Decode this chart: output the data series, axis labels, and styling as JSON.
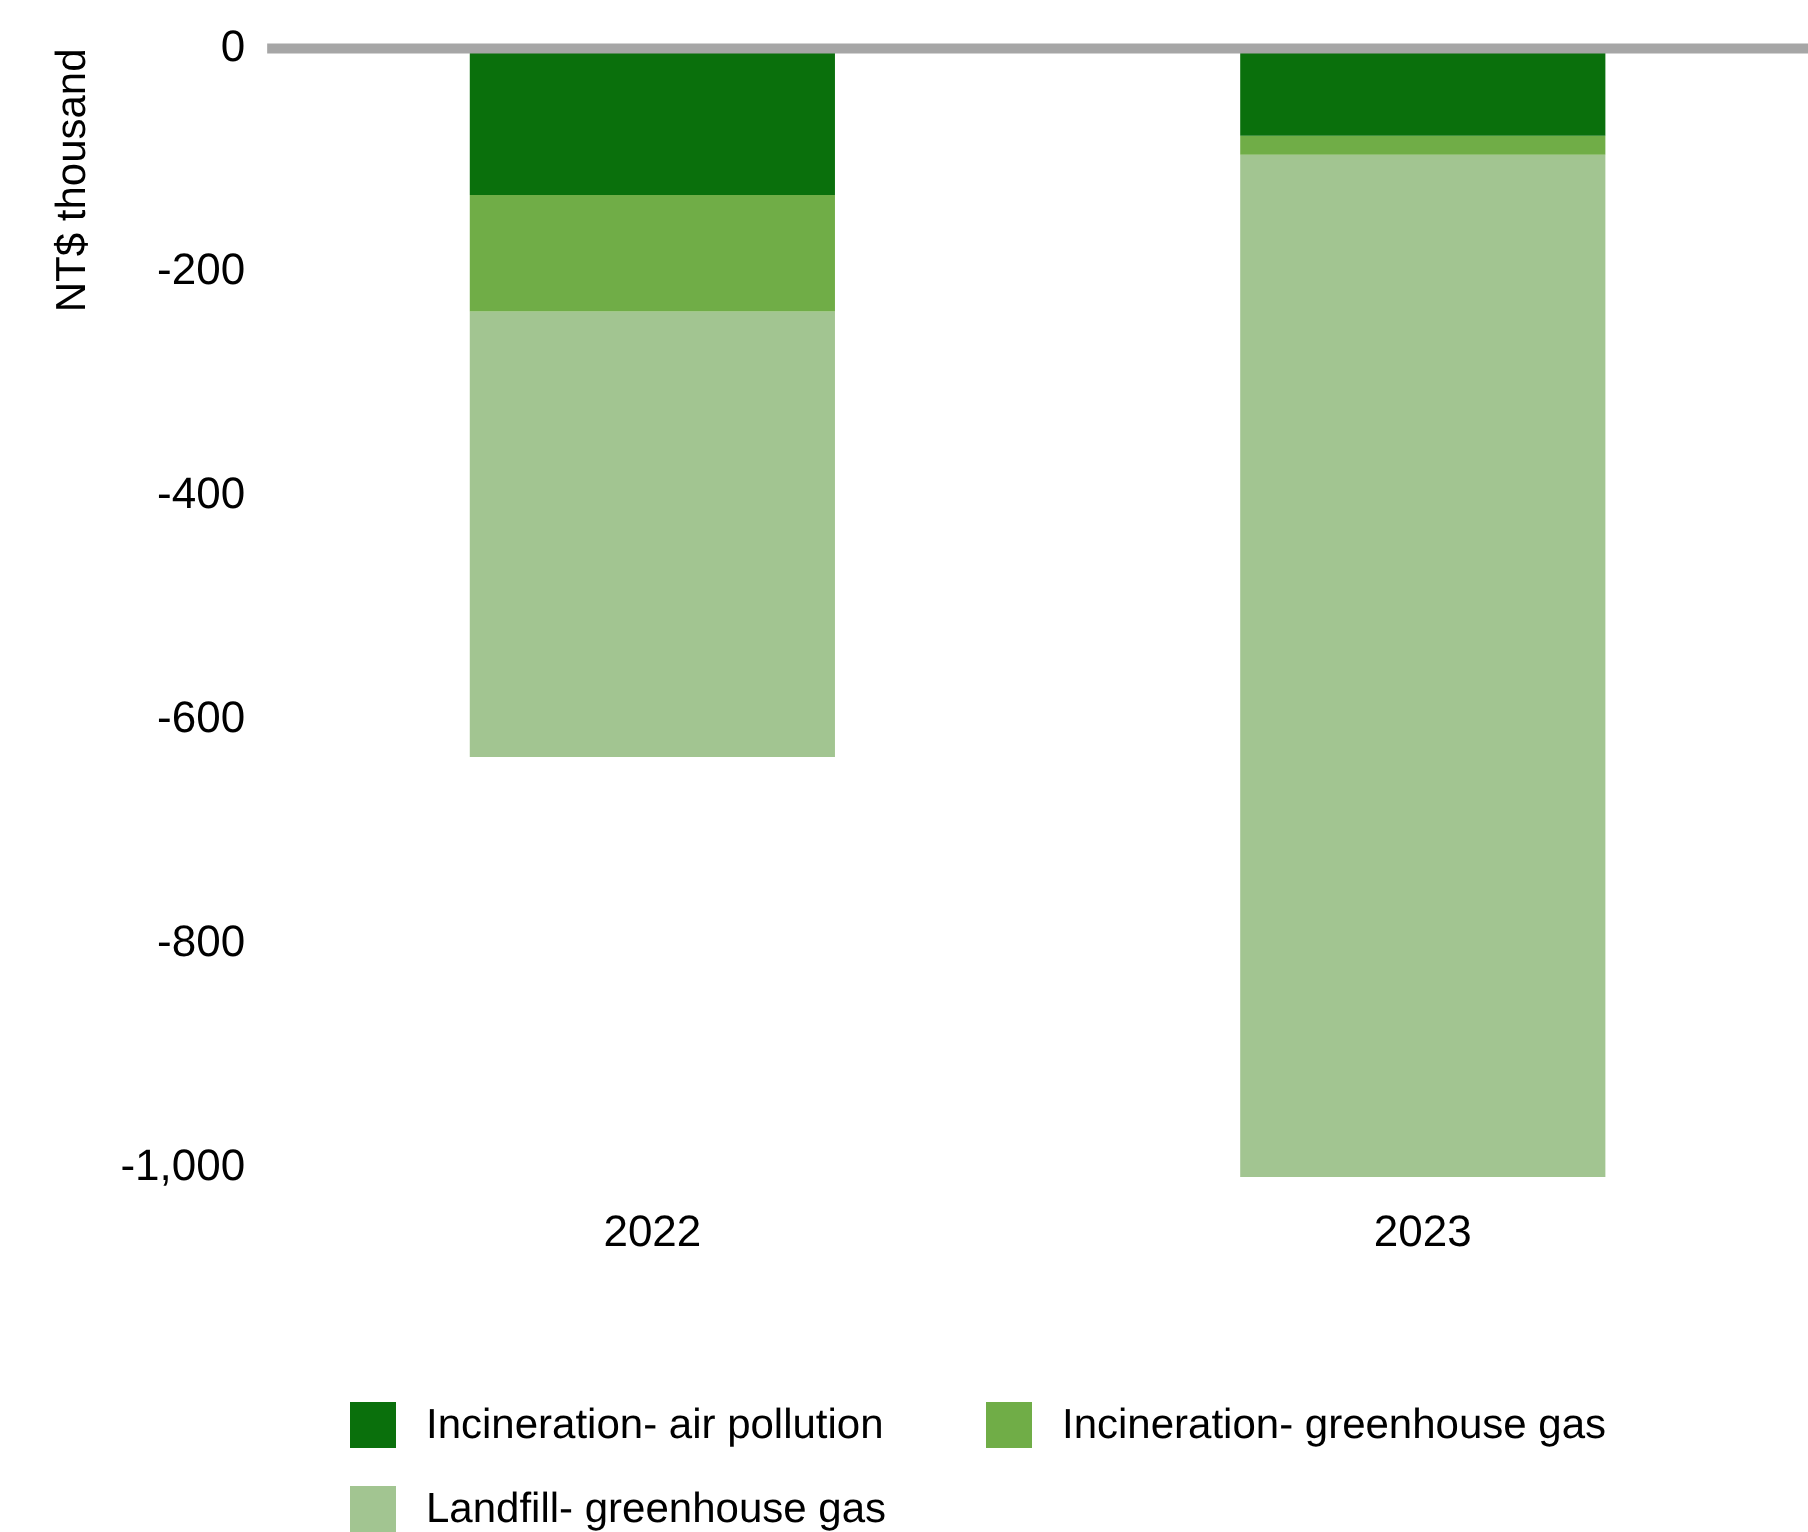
{
  "chart_data": {
    "type": "bar",
    "stacked": true,
    "ylabel": "NT$ thousand",
    "categories": [
      "2022",
      "2023"
    ],
    "series": [
      {
        "name": "Incineration- air pollution",
        "color": "#0a700c",
        "values": [
          -131,
          -78
        ]
      },
      {
        "name": "Incineration- greenhouse gas",
        "color": "#70ad47",
        "values": [
          -104,
          -17
        ]
      },
      {
        "name": "Landfill- greenhouse gas",
        "color": "#a2c591",
        "values": [
          -398,
          -913
        ]
      }
    ],
    "ylim": [
      -1010,
      0
    ],
    "yticks": [
      {
        "value": -1000,
        "label": "-1,000"
      },
      -800,
      -600,
      -400,
      -200,
      0
    ],
    "ref_lines": [
      {
        "axis": "y",
        "value": 0,
        "color": "#a6a6a6"
      }
    ],
    "legend": "bottom",
    "grid": false
  }
}
